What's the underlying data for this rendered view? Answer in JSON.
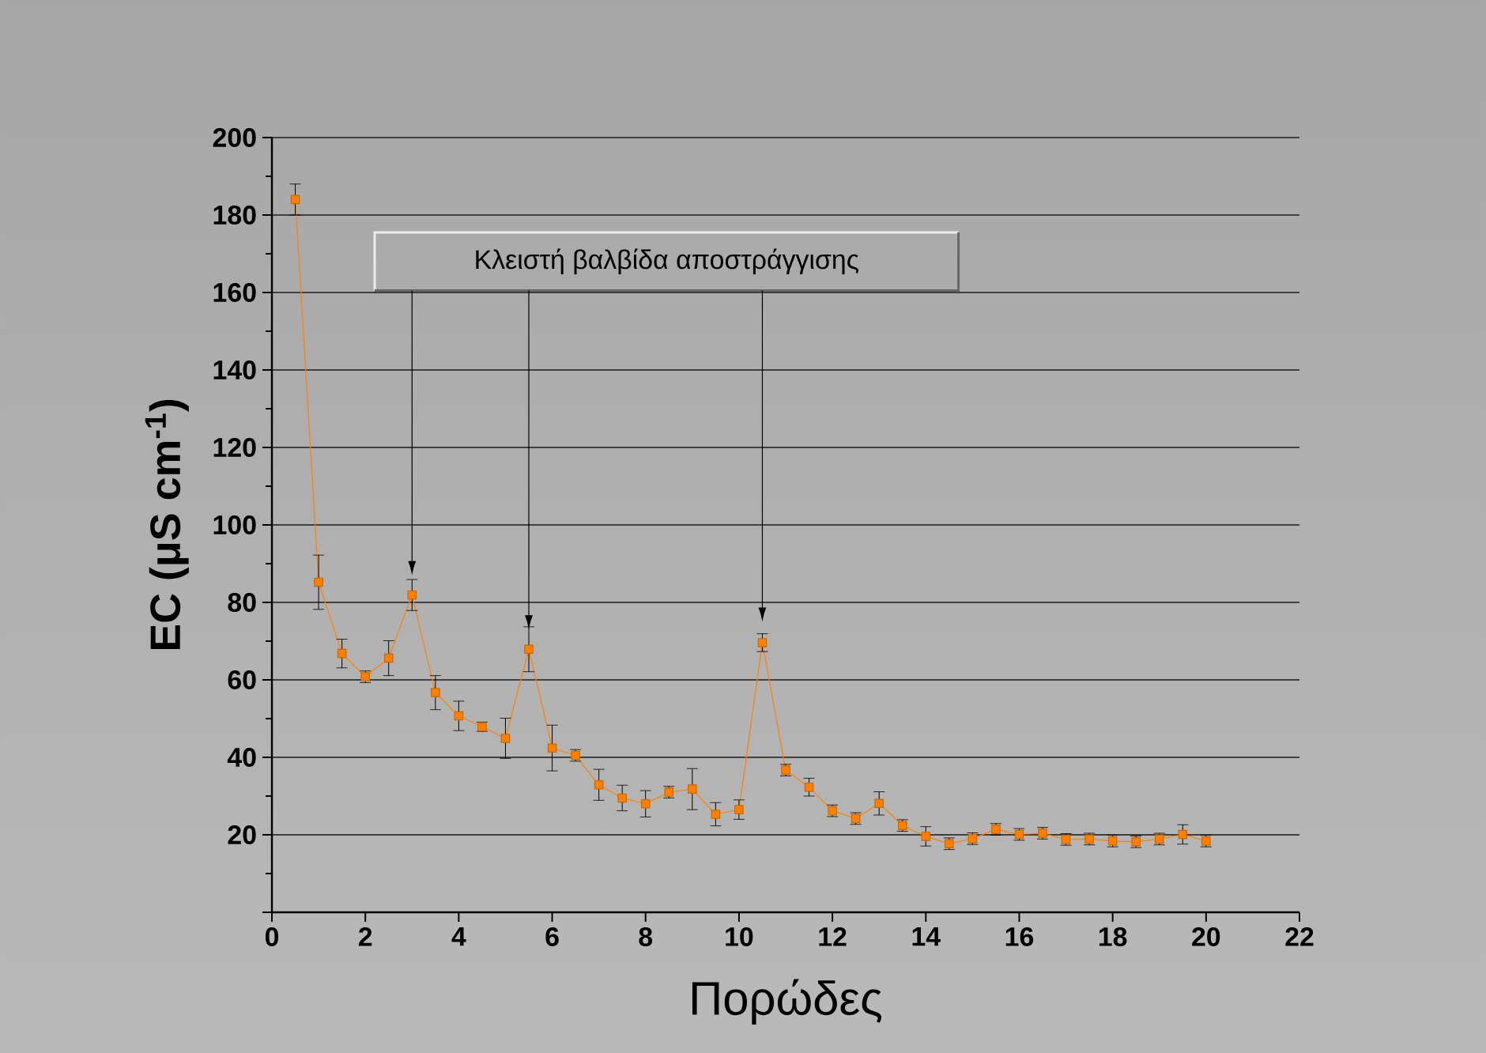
{
  "chart_data": {
    "type": "line",
    "xlabel": "Πορώδες",
    "ylabel": "**EC (μS cm$^{-1}$)**",
    "annotations": [
      {
        "text": "Κλειστή βαλβίδα αποστράγγισης",
        "x": 5.5,
        "y": 73
      }
    ],
    "x": [
      0.5,
      1,
      1.5,
      2,
      2.5,
      3,
      3.5,
      4,
      4.5,
      5,
      5.5,
      6,
      6.5,
      7,
      7.5,
      8,
      8.5,
      9,
      9.5,
      10,
      10.5,
      11,
      11.5,
      12,
      12.5,
      13,
      13.5,
      14,
      14.5,
      15,
      15.5,
      16,
      16.5,
      17,
      17.5,
      18,
      18.5,
      19,
      19.5,
      20
    ],
    "series": [
      {
        "color": "#ff8000",
        "values": [
          184,
          85.2,
          66.8,
          60.8,
          65.6,
          81.9,
          56.7,
          50.7,
          47.9,
          44.9,
          67.9,
          42.4,
          40.5,
          32.9,
          29.5,
          28,
          31,
          31.8,
          25.3,
          26.5,
          69.6,
          36.7,
          32.3,
          26.2,
          24.2,
          28.1,
          22.4,
          19.6,
          17.7,
          19,
          21.4,
          20.1,
          20.4,
          18.8,
          18.9,
          18.4,
          18.2,
          18.9,
          20.1,
          18.4
        ],
        "errors": [
          4,
          7,
          3.7,
          1.5,
          4.5,
          4,
          4.4,
          3.8,
          1.2,
          5.2,
          5.8,
          5.9,
          1.5,
          4,
          3.3,
          3.4,
          1.5,
          5.3,
          3,
          2.5,
          2.3,
          1.5,
          2.3,
          1.5,
          1.5,
          3,
          1.5,
          2.5,
          1.5,
          1.5,
          1.5,
          1.5,
          1.5,
          1.5,
          1.5,
          1.5,
          1.5,
          1.5,
          2.5,
          1.5
        ]
      }
    ],
    "xlim": [
      0,
      22
    ],
    "xticks": [
      0,
      2,
      4,
      6,
      8,
      10,
      12,
      14,
      16,
      18,
      20,
      22
    ],
    "ylim": [
      0,
      200
    ],
    "yticks": [
      {
        "value": 0,
        "label": null
      },
      20,
      40,
      60,
      80,
      100,
      120,
      140,
      160,
      180,
      200
    ],
    "grid": "y",
    "marker": "square",
    "line_style": "solid"
  }
}
